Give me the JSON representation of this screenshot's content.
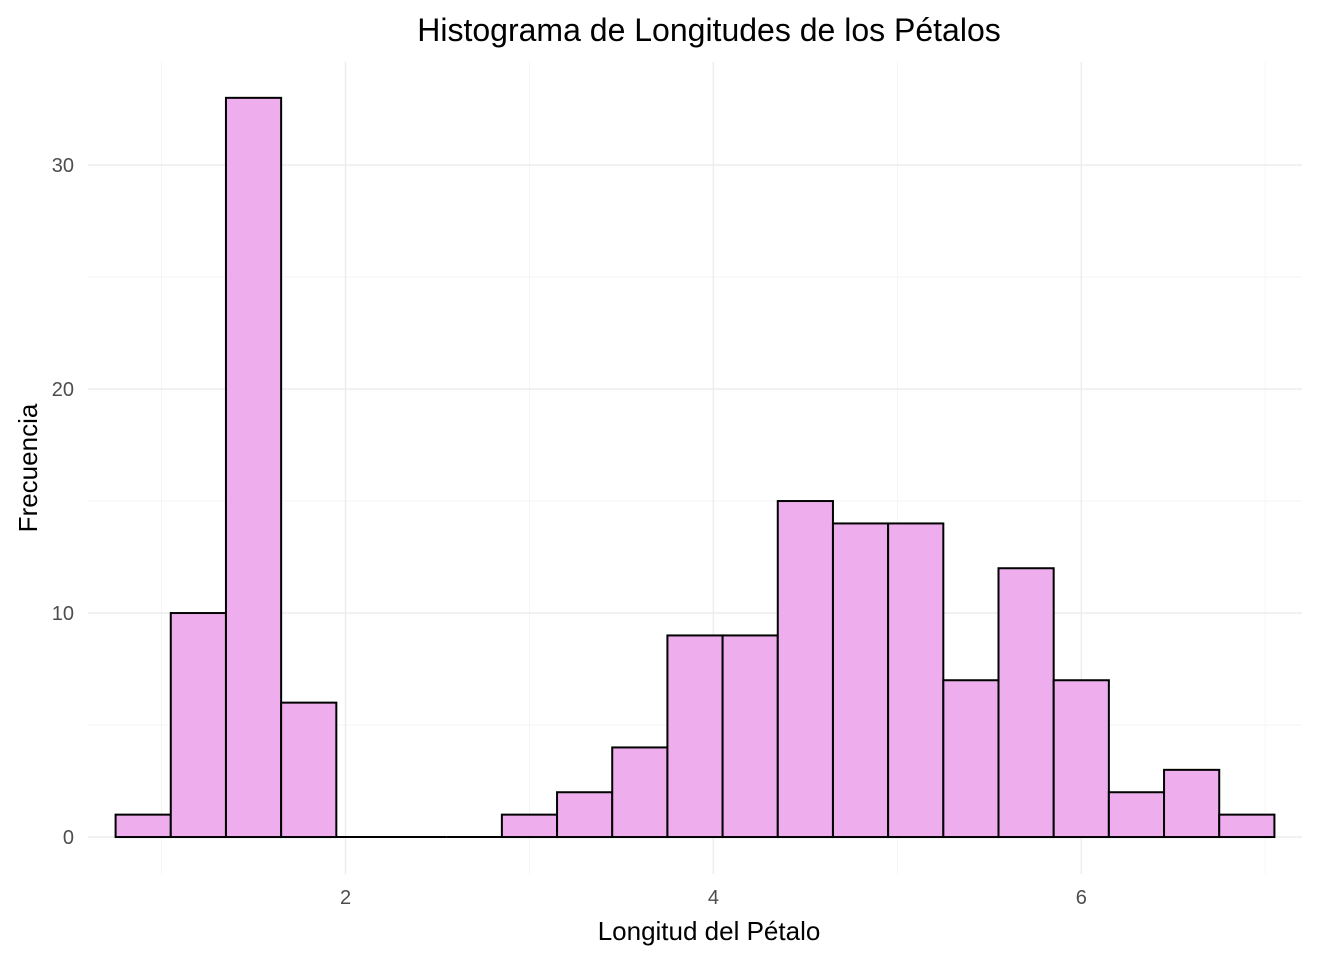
{
  "chart_data": {
    "type": "bar",
    "title": "Histograma de Longitudes de los Pétalos",
    "xlabel": "Longitud del Pétalo",
    "ylabel": "Frecuencia",
    "bar_color": "#EEAEEE",
    "bar_edge_color": "#000000",
    "grid": true,
    "legend": "none",
    "bin_width": 0.3,
    "xlim": [
      0.6,
      7.2
    ],
    "ylim": [
      -1.65,
      34.6
    ],
    "x_ticks": [
      2,
      4,
      6
    ],
    "y_ticks": [
      0,
      10,
      20,
      30
    ],
    "bins": [
      {
        "x0": 0.75,
        "x1": 1.05,
        "count": 1
      },
      {
        "x0": 1.05,
        "x1": 1.35,
        "count": 10
      },
      {
        "x0": 1.35,
        "x1": 1.65,
        "count": 33
      },
      {
        "x0": 1.65,
        "x1": 1.95,
        "count": 6
      },
      {
        "x0": 1.95,
        "x1": 2.25,
        "count": 0
      },
      {
        "x0": 2.25,
        "x1": 2.55,
        "count": 0
      },
      {
        "x0": 2.55,
        "x1": 2.85,
        "count": 0
      },
      {
        "x0": 2.85,
        "x1": 3.15,
        "count": 1
      },
      {
        "x0": 3.15,
        "x1": 3.45,
        "count": 2
      },
      {
        "x0": 3.45,
        "x1": 3.75,
        "count": 4
      },
      {
        "x0": 3.75,
        "x1": 4.05,
        "count": 9
      },
      {
        "x0": 4.05,
        "x1": 4.35,
        "count": 9
      },
      {
        "x0": 4.35,
        "x1": 4.65,
        "count": 15
      },
      {
        "x0": 4.65,
        "x1": 4.95,
        "count": 14
      },
      {
        "x0": 4.95,
        "x1": 5.25,
        "count": 14
      },
      {
        "x0": 5.25,
        "x1": 5.55,
        "count": 7
      },
      {
        "x0": 5.55,
        "x1": 5.85,
        "count": 12
      },
      {
        "x0": 5.85,
        "x1": 6.15,
        "count": 7
      },
      {
        "x0": 6.15,
        "x1": 6.45,
        "count": 2
      },
      {
        "x0": 6.45,
        "x1": 6.75,
        "count": 3
      },
      {
        "x0": 6.75,
        "x1": 7.05,
        "count": 1
      }
    ]
  }
}
